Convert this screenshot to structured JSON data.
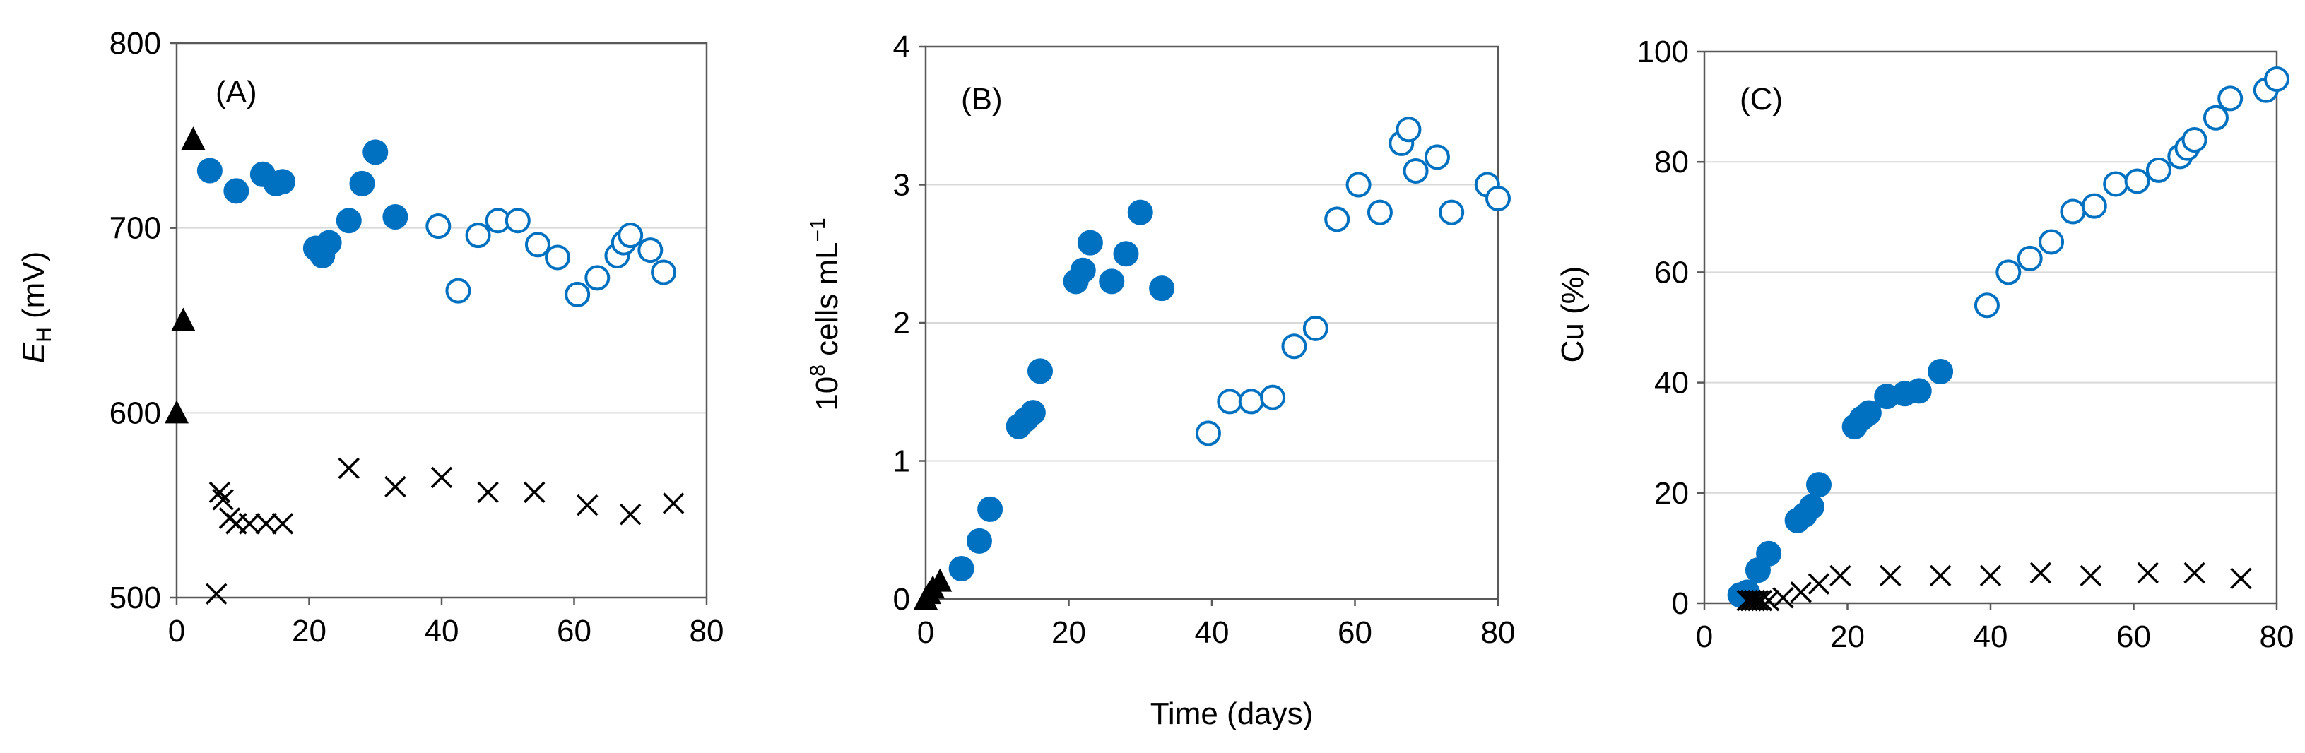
{
  "colors": {
    "filled": "#0070C0",
    "black": "#000000",
    "grid": "#D9D9D9",
    "axis": "#595959"
  },
  "shared": {
    "xlabel": "Time (days)"
  },
  "chart_data": [
    {
      "type": "scatter",
      "panel_label": "(A)",
      "ylabel_main": "E",
      "ylabel_sub": "H",
      "ylabel_rest": " (mV)",
      "xlim": [
        0,
        80
      ],
      "ylim": [
        500,
        800
      ],
      "xticks": [
        "0",
        "20",
        "40",
        "60",
        "80"
      ],
      "yticks": [
        "500",
        "600",
        "700",
        "800"
      ],
      "series": [
        {
          "name": "filled circles",
          "marker": "filled-circle",
          "x": [
            5,
            9,
            13,
            15,
            16,
            21,
            22,
            23,
            26,
            28,
            30,
            33
          ],
          "y": [
            731,
            720,
            729,
            724,
            725,
            689,
            685,
            692,
            704,
            724,
            741,
            706
          ]
        },
        {
          "name": "open circles",
          "marker": "open-circle",
          "x": [
            39.5,
            42.5,
            45.5,
            48.5,
            51.5,
            54.5,
            57.5,
            60.5,
            63.5,
            66.5,
            67.5,
            68.5,
            71.5,
            73.5
          ],
          "y": [
            701,
            666,
            696,
            704,
            704,
            691,
            684,
            664,
            673,
            685,
            692,
            696,
            688,
            676
          ]
        },
        {
          "name": "triangles",
          "marker": "triangle",
          "x": [
            0,
            1,
            2.5
          ],
          "y": [
            600,
            650,
            748
          ]
        },
        {
          "name": "crosses",
          "marker": "cross",
          "x": [
            6,
            6.5,
            7,
            8,
            9,
            11,
            13.5,
            16,
            26,
            33,
            40,
            47,
            54,
            62,
            68.5,
            75
          ],
          "y": [
            502,
            557,
            553,
            543,
            540,
            540,
            540,
            540,
            570,
            560,
            565,
            557,
            557,
            550,
            545,
            551
          ]
        }
      ]
    },
    {
      "type": "scatter",
      "panel_label": "(B)",
      "ylabel_main": "10",
      "ylabel_sup": "8",
      "ylabel_rest": " cells mL",
      "ylabel_sup2": "−1",
      "xlim": [
        0,
        80
      ],
      "ylim": [
        0,
        4
      ],
      "xticks": [
        "0",
        "20",
        "40",
        "60",
        "80"
      ],
      "yticks": [
        "0",
        "1",
        "2",
        "3",
        "4"
      ],
      "series": [
        {
          "name": "filled circles",
          "marker": "filled-circle",
          "x": [
            5,
            7.5,
            9,
            13,
            14,
            15,
            16,
            21,
            22,
            23,
            26,
            28,
            30,
            33
          ],
          "y": [
            0.22,
            0.42,
            0.65,
            1.25,
            1.3,
            1.35,
            1.65,
            2.3,
            2.38,
            2.58,
            2.3,
            2.5,
            2.8,
            2.25
          ]
        },
        {
          "name": "open circles",
          "marker": "open-circle",
          "x": [
            39.5,
            42.5,
            45.5,
            48.5,
            51.5,
            54.5,
            57.5,
            60.5,
            63.5,
            66.5,
            67.5,
            68.5,
            71.5,
            73.5,
            78.5,
            80
          ],
          "y": [
            1.2,
            1.43,
            1.43,
            1.46,
            1.83,
            1.96,
            2.75,
            3.0,
            2.8,
            3.3,
            3.4,
            3.1,
            3.2,
            2.8,
            3.0,
            2.9
          ]
        },
        {
          "name": "triangles",
          "marker": "triangle",
          "x": [
            0,
            0.5,
            1,
            2
          ],
          "y": [
            0.0,
            0.04,
            0.08,
            0.13
          ]
        }
      ]
    },
    {
      "type": "scatter",
      "panel_label": "(C)",
      "ylabel_main": "Cu (%)",
      "xlim": [
        0,
        80
      ],
      "ylim": [
        0,
        100
      ],
      "xticks": [
        "0",
        "20",
        "40",
        "60",
        "80"
      ],
      "yticks": [
        "0",
        "20",
        "40",
        "60",
        "80",
        "100"
      ],
      "series": [
        {
          "name": "filled circles",
          "marker": "filled-circle",
          "x": [
            5,
            6,
            7.5,
            9,
            13,
            14,
            15,
            16,
            21,
            22,
            23,
            25.5,
            28,
            30,
            33
          ],
          "y": [
            1.5,
            2,
            6,
            9,
            15,
            16,
            17.5,
            21.5,
            32,
            33.5,
            34.5,
            37.5,
            38,
            38.5,
            42
          ]
        },
        {
          "name": "open circles",
          "marker": "open-circle",
          "x": [
            39.5,
            42.5,
            45.5,
            48.5,
            51.5,
            54.5,
            57.5,
            60.5,
            63.5,
            66.5,
            67.5,
            68.5,
            71.5,
            73.5,
            78.5,
            80
          ],
          "y": [
            54,
            60,
            62.5,
            65.5,
            71,
            72,
            76,
            76.5,
            78.5,
            81,
            82.5,
            84,
            88,
            91.5,
            93,
            95
          ]
        },
        {
          "name": "crosses",
          "marker": "cross",
          "x": [
            6,
            6.5,
            7,
            7.5,
            8,
            9,
            11,
            13.5,
            16,
            19,
            26,
            33,
            40,
            47,
            54,
            62,
            68.5,
            75
          ],
          "y": [
            0.5,
            0.5,
            0.5,
            0.5,
            0.5,
            0.5,
            1,
            2,
            3.5,
            5,
            5,
            5,
            5,
            5.5,
            5,
            5.5,
            5.5,
            4.5
          ]
        }
      ]
    }
  ]
}
